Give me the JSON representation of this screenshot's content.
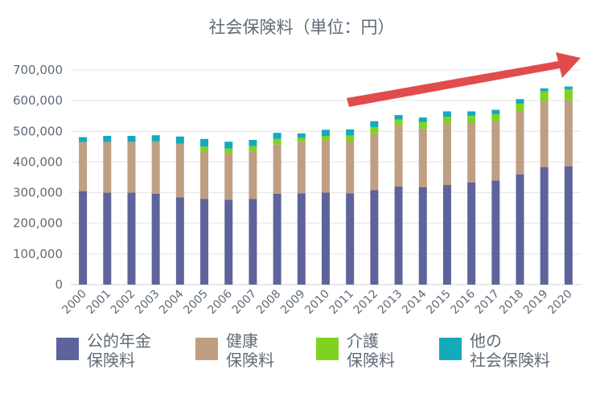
{
  "chart_data": {
    "type": "bar",
    "stacked": true,
    "title": "社会保険料（単位：円）",
    "categories": [
      "2000",
      "2001",
      "2002",
      "2003",
      "2004",
      "2005",
      "2006",
      "2007",
      "2008",
      "2009",
      "2010",
      "2011",
      "2012",
      "2013",
      "2014",
      "2015",
      "2016",
      "2017",
      "2018",
      "2019",
      "2020"
    ],
    "ylim": [
      0,
      700000
    ],
    "yticks": [
      "0",
      "100,000",
      "200,000",
      "300,000",
      "400,000",
      "500,000",
      "600,000",
      "700,000"
    ],
    "ytick_values": [
      0,
      100000,
      200000,
      300000,
      400000,
      500000,
      600000,
      700000
    ],
    "grid": true,
    "series": [
      {
        "name": "公的年金保険料",
        "color": "#5e649b",
        "values": [
          305000,
          300000,
          300000,
          297000,
          285000,
          280000,
          277000,
          280000,
          297000,
          298000,
          300000,
          298000,
          308000,
          320000,
          318000,
          325000,
          333000,
          340000,
          360000,
          383000,
          386000
        ]
      },
      {
        "name": "健康保険料",
        "color": "#c09e82",
        "values": [
          160000,
          165000,
          165000,
          170000,
          175000,
          155000,
          152000,
          155000,
          160000,
          168000,
          170000,
          170000,
          185000,
          200000,
          190000,
          200000,
          195000,
          190000,
          205000,
          215000,
          215000
        ]
      },
      {
        "name": "介護保険料",
        "color": "#7ed321",
        "values": [
          0,
          0,
          0,
          0,
          0,
          15000,
          15000,
          17000,
          18000,
          12000,
          15000,
          18000,
          20000,
          18000,
          22000,
          22000,
          22000,
          25000,
          25000,
          32000,
          35000
        ]
      },
      {
        "name": "他の社会保険料",
        "color": "#13aabc",
        "values": [
          16000,
          20000,
          20000,
          20000,
          23000,
          25000,
          22000,
          20000,
          20000,
          15000,
          20000,
          20000,
          20000,
          15000,
          15000,
          18000,
          15000,
          15000,
          15000,
          10000,
          10000
        ]
      }
    ],
    "annotation": {
      "type": "trend-arrow",
      "color": "#e24b4b",
      "description": "rising trend 2010-2020"
    }
  },
  "legend": [
    {
      "lines": [
        "公的年金",
        "保険料"
      ],
      "color": "#5e649b"
    },
    {
      "lines": [
        "健康",
        "保険料"
      ],
      "color": "#c09e82"
    },
    {
      "lines": [
        "介護",
        "保険料"
      ],
      "color": "#7ed321"
    },
    {
      "lines": [
        "他の",
        "社会保険料"
      ],
      "color": "#13aabc"
    }
  ]
}
